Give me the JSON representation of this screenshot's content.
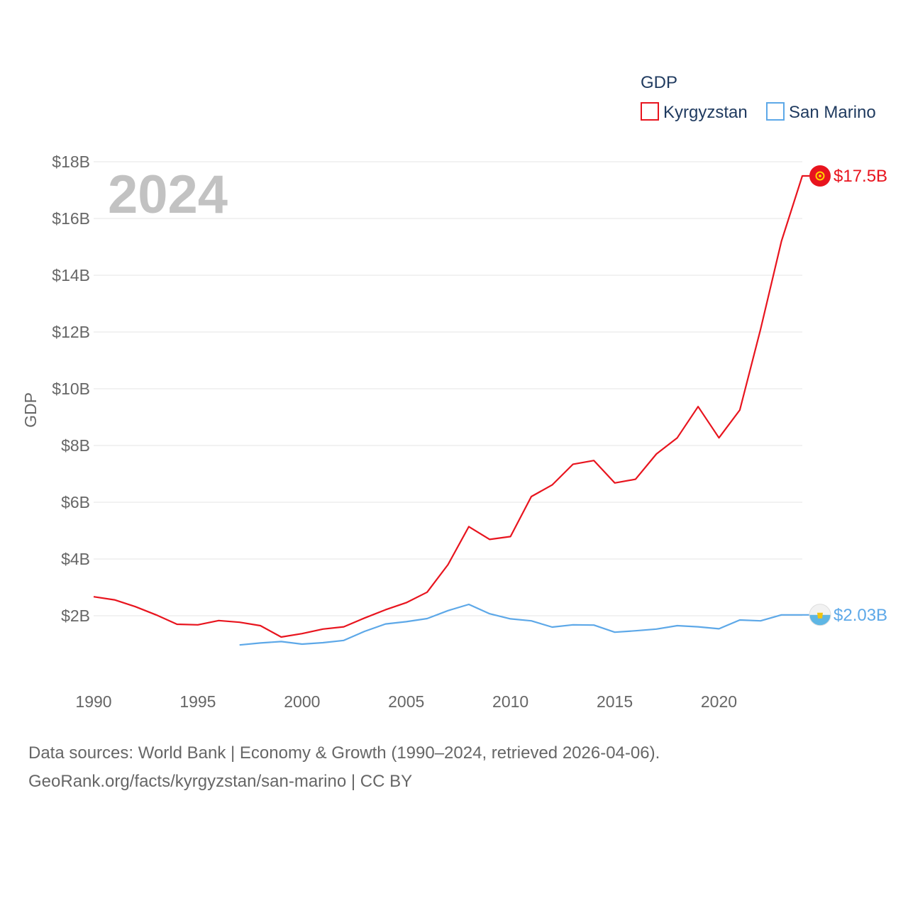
{
  "chart_data": {
    "type": "line",
    "title": "GDP",
    "ylabel": "GDP",
    "xlabel": "",
    "current_year": "2024",
    "xlim": [
      1990,
      2024
    ],
    "ylim": [
      0,
      18
    ],
    "x_ticks": [
      1990,
      1995,
      2000,
      2005,
      2010,
      2015,
      2020
    ],
    "y_ticks": [
      {
        "value": 2,
        "label": "$2B"
      },
      {
        "value": 4,
        "label": "$4B"
      },
      {
        "value": 6,
        "label": "$6B"
      },
      {
        "value": 8,
        "label": "$8B"
      },
      {
        "value": 10,
        "label": "$10B"
      },
      {
        "value": 12,
        "label": "$12B"
      },
      {
        "value": 14,
        "label": "$14B"
      },
      {
        "value": 16,
        "label": "$16B"
      },
      {
        "value": 18,
        "label": "$18B"
      }
    ],
    "legend": {
      "title": "GDP",
      "position": "top-right"
    },
    "series": [
      {
        "name": "Kyrgyzstan",
        "color": "#e8141e",
        "end_label": "$17.5B",
        "flag_icon": "kyrgyzstan-flag-icon",
        "x": [
          1990,
          1991,
          1992,
          1993,
          1994,
          1995,
          1996,
          1997,
          1998,
          1999,
          2000,
          2001,
          2002,
          2003,
          2004,
          2005,
          2006,
          2007,
          2008,
          2009,
          2010,
          2011,
          2012,
          2013,
          2014,
          2015,
          2016,
          2017,
          2018,
          2019,
          2020,
          2021,
          2022,
          2023,
          2024
        ],
        "values": [
          2.67,
          2.56,
          2.32,
          2.03,
          1.7,
          1.68,
          1.83,
          1.77,
          1.65,
          1.25,
          1.37,
          1.53,
          1.61,
          1.92,
          2.21,
          2.46,
          2.83,
          3.8,
          5.14,
          4.69,
          4.79,
          6.2,
          6.61,
          7.34,
          7.47,
          6.68,
          6.81,
          7.7,
          8.27,
          9.37,
          8.27,
          9.25,
          12.1,
          15.2,
          17.5
        ]
      },
      {
        "name": "San Marino",
        "color": "#5da8e8",
        "end_label": "$2.03B",
        "flag_icon": "san-marino-flag-icon",
        "x": [
          1997,
          1998,
          1999,
          2000,
          2001,
          2002,
          2003,
          2004,
          2005,
          2006,
          2007,
          2008,
          2009,
          2010,
          2011,
          2012,
          2013,
          2014,
          2015,
          2016,
          2017,
          2018,
          2019,
          2020,
          2021,
          2022,
          2023,
          2024
        ],
        "values": [
          0.97,
          1.04,
          1.09,
          1.0,
          1.05,
          1.13,
          1.45,
          1.71,
          1.79,
          1.9,
          2.18,
          2.4,
          2.07,
          1.89,
          1.82,
          1.6,
          1.68,
          1.67,
          1.42,
          1.47,
          1.53,
          1.65,
          1.61,
          1.54,
          1.85,
          1.82,
          2.03,
          2.03
        ]
      }
    ]
  },
  "source": {
    "line1": "Data sources: World Bank | Economy & Growth (1990–2024, retrieved 2026-04-06).",
    "line2": "GeoRank.org/facts/kyrgyzstan/san-marino | CC BY"
  }
}
